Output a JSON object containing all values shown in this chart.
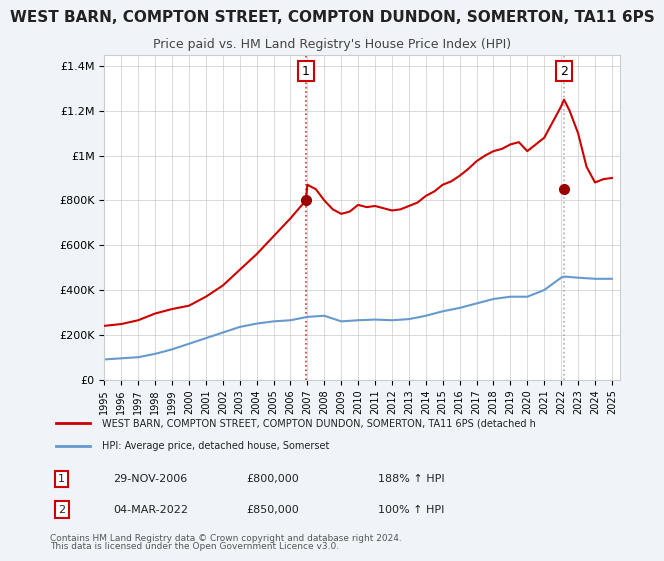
{
  "title": "WEST BARN, COMPTON STREET, COMPTON DUNDON, SOMERTON, TA11 6PS",
  "subtitle": "Price paid vs. HM Land Registry's House Price Index (HPI)",
  "title_fontsize": 11,
  "subtitle_fontsize": 9,
  "background_color": "#f0f4f8",
  "plot_bg_color": "#ffffff",
  "ylim": [
    0,
    1450000
  ],
  "xlim_start": 1995.0,
  "xlim_end": 2025.5,
  "yticks": [
    0,
    200000,
    400000,
    600000,
    800000,
    1000000,
    1200000,
    1400000
  ],
  "ytick_labels": [
    "£0",
    "£200K",
    "£400K",
    "£600K",
    "£800K",
    "£1M",
    "£1.2M",
    "£1.4M"
  ],
  "xticks": [
    1995,
    1996,
    1997,
    1998,
    1999,
    2000,
    2001,
    2002,
    2003,
    2004,
    2005,
    2006,
    2007,
    2008,
    2009,
    2010,
    2011,
    2012,
    2013,
    2014,
    2015,
    2016,
    2017,
    2018,
    2019,
    2020,
    2021,
    2022,
    2023,
    2024,
    2025
  ],
  "red_line_color": "#cc0000",
  "blue_line_color": "#6699cc",
  "marker_color": "#990000",
  "sale1_x": 2006.91,
  "sale1_y": 800000,
  "sale2_x": 2022.17,
  "sale2_y": 850000,
  "legend_label_red": "WEST BARN, COMPTON STREET, COMPTON DUNDON, SOMERTON, TA11 6PS (detached h",
  "legend_label_blue": "HPI: Average price, detached house, Somerset",
  "table_rows": [
    {
      "num": "1",
      "date": "29-NOV-2006",
      "price": "£800,000",
      "hpi": "188% ↑ HPI"
    },
    {
      "num": "2",
      "date": "04-MAR-2022",
      "price": "£850,000",
      "hpi": "100% ↑ HPI"
    }
  ],
  "footnote1": "Contains HM Land Registry data © Crown copyright and database right 2024.",
  "footnote2": "This data is licensed under the Open Government Licence v3.0.",
  "grid_color": "#cccccc"
}
